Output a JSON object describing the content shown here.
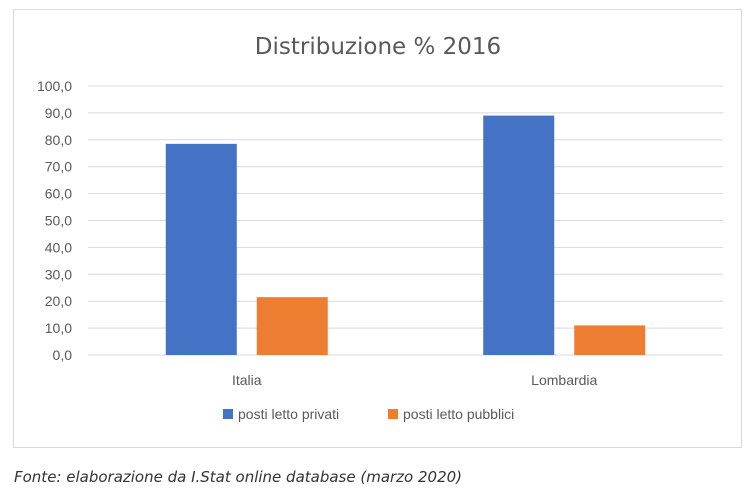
{
  "chart_data": {
    "type": "bar",
    "title": "Distribuzione % 2016",
    "categories": [
      "Italia",
      "Lombardia"
    ],
    "series": [
      {
        "name": "posti letto privati",
        "values": [
          78.5,
          89.0
        ],
        "color": "#4472c4"
      },
      {
        "name": "posti letto pubblici",
        "values": [
          21.5,
          11.0
        ],
        "color": "#ed7d31"
      }
    ],
    "ylim": [
      0,
      100
    ],
    "yticks": [
      "0,0",
      "10,0",
      "20,0",
      "30,0",
      "40,0",
      "50,0",
      "60,0",
      "70,0",
      "80,0",
      "90,0",
      "100,0"
    ],
    "grid": true,
    "legend_position": "bottom"
  },
  "caption": "Fonte: elaborazione da I.Stat online database (marzo 2020)"
}
